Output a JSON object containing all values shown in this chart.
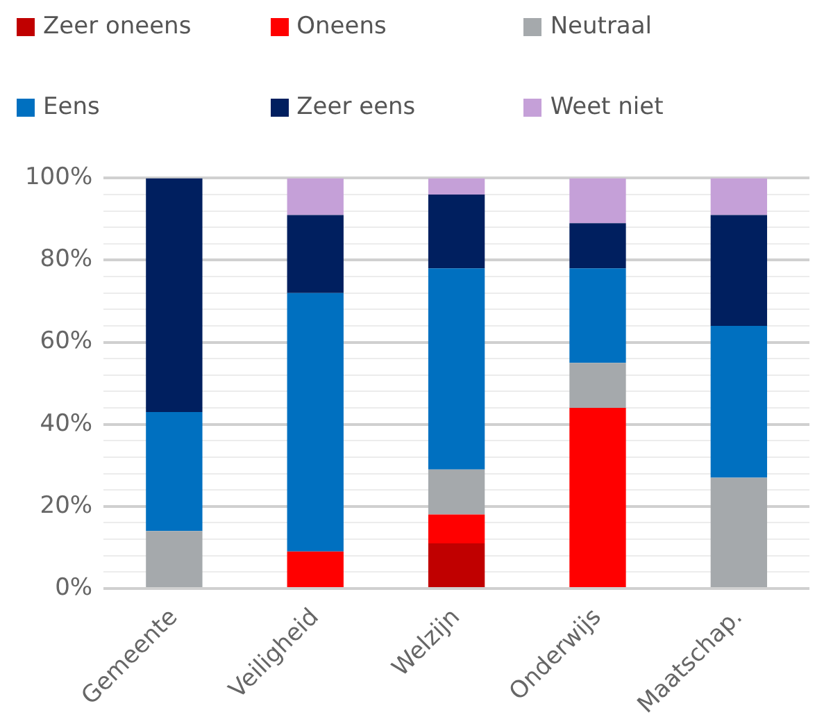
{
  "chart_data": {
    "type": "bar",
    "stacked": true,
    "categories": [
      "Gemeente",
      "Veiligheid",
      "Welzijn",
      "Onderwijs",
      "Maatschap."
    ],
    "series": [
      {
        "name": "Zeer oneens",
        "color": "#c00000",
        "values": [
          0,
          0,
          11,
          0,
          0
        ]
      },
      {
        "name": "Oneens",
        "color": "#ff0000",
        "values": [
          0,
          9,
          7,
          44,
          0
        ]
      },
      {
        "name": "Neutraal",
        "color": "#a5a9ac",
        "values": [
          14,
          0,
          11,
          11,
          27
        ]
      },
      {
        "name": "Eens",
        "color": "#0070c0",
        "values": [
          29,
          63,
          49,
          23,
          37
        ]
      },
      {
        "name": "Zeer eens",
        "color": "#001f5f",
        "values": [
          57,
          19,
          18,
          11,
          27
        ]
      },
      {
        "name": "Weet niet",
        "color": "#c5a0d8",
        "values": [
          0,
          9,
          4,
          11,
          9
        ]
      }
    ],
    "ylim": [
      0,
      100
    ],
    "yticks": [
      {
        "value": 0,
        "label": "0%"
      },
      {
        "value": 4,
        "label": null
      },
      {
        "value": 8,
        "label": null
      },
      {
        "value": 12,
        "label": null
      },
      {
        "value": 16,
        "label": null
      },
      {
        "value": 20,
        "label": "20%"
      },
      {
        "value": 24,
        "label": null
      },
      {
        "value": 28,
        "label": null
      },
      {
        "value": 32,
        "label": null
      },
      {
        "value": 36,
        "label": null
      },
      {
        "value": 40,
        "label": "40%"
      },
      {
        "value": 44,
        "label": null
      },
      {
        "value": 48,
        "label": null
      },
      {
        "value": 52,
        "label": null
      },
      {
        "value": 56,
        "label": null
      },
      {
        "value": 60,
        "label": "60%"
      },
      {
        "value": 64,
        "label": null
      },
      {
        "value": 68,
        "label": null
      },
      {
        "value": 72,
        "label": null
      },
      {
        "value": 76,
        "label": null
      },
      {
        "value": 80,
        "label": "80%"
      },
      {
        "value": 84,
        "label": null
      },
      {
        "value": 88,
        "label": null
      },
      {
        "value": 92,
        "label": null
      },
      {
        "value": 96,
        "label": null
      },
      {
        "value": 100,
        "label": "100%"
      }
    ],
    "grid": "y",
    "legend": "top"
  }
}
